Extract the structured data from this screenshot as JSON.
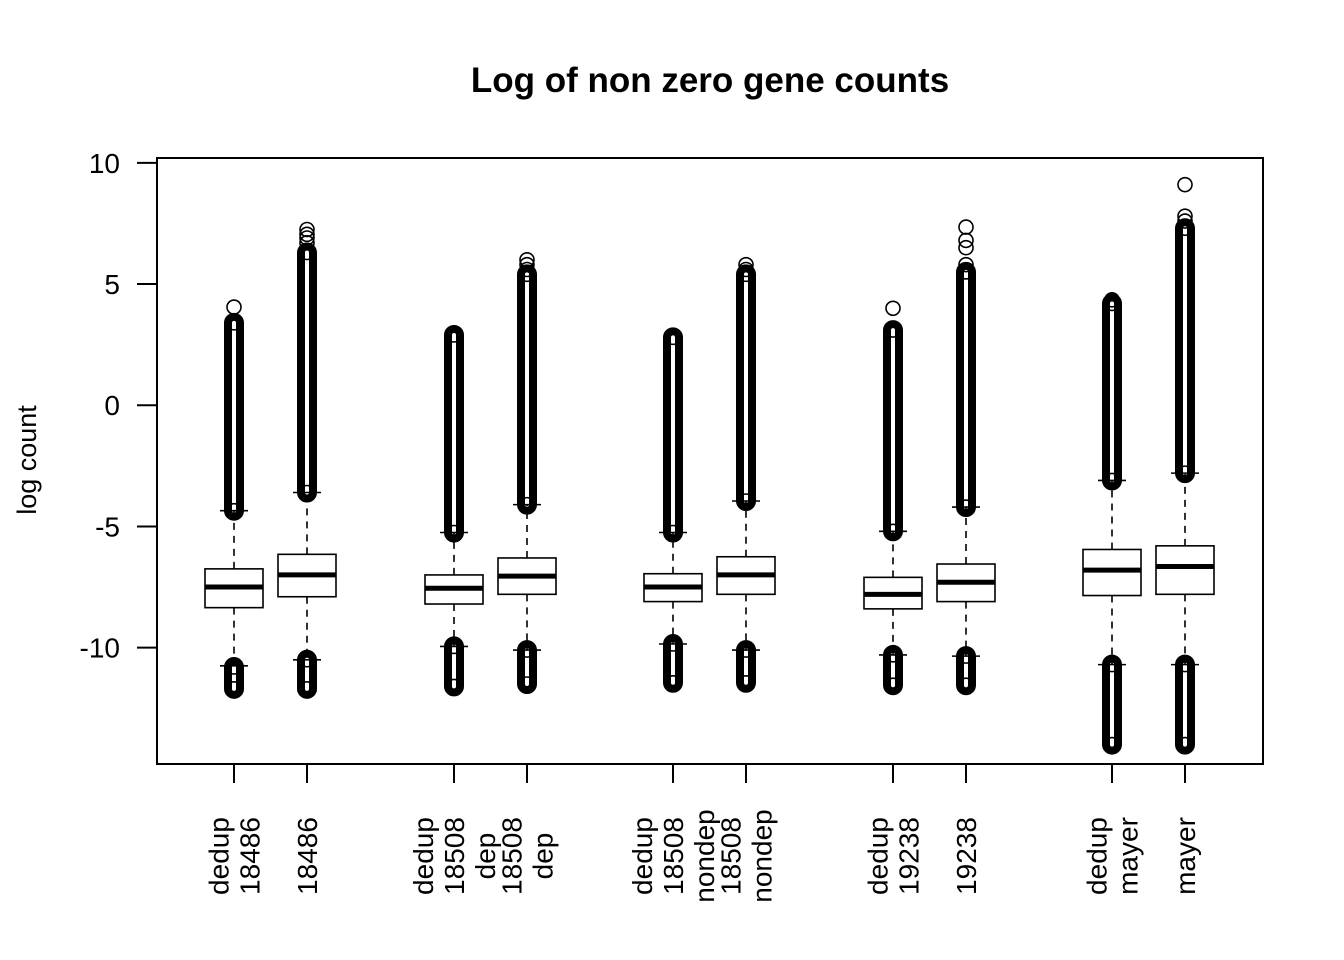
{
  "chart_data": {
    "type": "boxplot",
    "title": "Log of non zero gene counts",
    "xlabel": "",
    "ylabel": "log count",
    "ylim": [
      -14.8,
      10.2
    ],
    "yticks": [
      -10,
      -5,
      0,
      5,
      10
    ],
    "ytick_labels": [
      "-10",
      "-5",
      "0",
      "5",
      "10"
    ],
    "grid": false,
    "legend": "none",
    "colors": {
      "box_fill": "#ffffff",
      "stroke": "#000000"
    },
    "categories": [
      {
        "lines": [
          "dedup",
          "18486"
        ],
        "q1": -8.35,
        "median": -7.5,
        "q3": -6.75,
        "whisker_low": -10.75,
        "whisker_high": -4.35,
        "outlier_low": [
          -10.8,
          -11.7
        ],
        "outlier_high": [
          -4.35,
          3.4
        ],
        "outlier_extreme_high": [
          4.05
        ]
      },
      {
        "lines": [
          "18486"
        ],
        "q1": -7.9,
        "median": -7.0,
        "q3": -6.15,
        "whisker_low": -10.5,
        "whisker_high": -3.6,
        "outlier_low": [
          -10.5,
          -11.7
        ],
        "outlier_high": [
          -3.6,
          6.3
        ],
        "outlier_extreme_high": [
          6.7,
          6.9,
          7.05,
          7.25
        ]
      },
      {
        "lines": [
          "dedup",
          "18508",
          "dep"
        ],
        "q1": -8.2,
        "median": -7.55,
        "q3": -7.0,
        "whisker_low": -9.95,
        "whisker_high": -5.25,
        "outlier_low": [
          -9.95,
          -11.6
        ],
        "outlier_high": [
          -5.25,
          2.9
        ],
        "outlier_extreme_high": []
      },
      {
        "lines": [
          "18508",
          "dep"
        ],
        "q1": -7.8,
        "median": -7.05,
        "q3": -6.3,
        "whisker_low": -10.1,
        "whisker_high": -4.1,
        "outlier_low": [
          -10.1,
          -11.5
        ],
        "outlier_high": [
          -4.1,
          5.4
        ],
        "outlier_extreme_high": [
          5.6,
          5.8,
          6.0
        ]
      },
      {
        "lines": [
          "dedup",
          "18508",
          "nondep"
        ],
        "q1": -8.1,
        "median": -7.5,
        "q3": -6.95,
        "whisker_low": -9.85,
        "whisker_high": -5.25,
        "outlier_low": [
          -9.85,
          -11.45
        ],
        "outlier_high": [
          -5.25,
          2.8
        ],
        "outlier_extreme_high": []
      },
      {
        "lines": [
          "18508",
          "nondep"
        ],
        "q1": -7.8,
        "median": -7.0,
        "q3": -6.25,
        "whisker_low": -10.1,
        "whisker_high": -3.95,
        "outlier_low": [
          -10.1,
          -11.45
        ],
        "outlier_high": [
          -3.95,
          5.4
        ],
        "outlier_extreme_high": [
          5.6,
          5.8
        ]
      },
      {
        "lines": [
          "dedup",
          "19238"
        ],
        "q1": -8.4,
        "median": -7.8,
        "q3": -7.1,
        "whisker_low": -10.3,
        "whisker_high": -5.2,
        "outlier_low": [
          -10.3,
          -11.55
        ],
        "outlier_high": [
          -5.2,
          3.1
        ],
        "outlier_extreme_high": [
          4.0
        ]
      },
      {
        "lines": [
          "19238"
        ],
        "q1": -8.1,
        "median": -7.3,
        "q3": -6.55,
        "whisker_low": -10.35,
        "whisker_high": -4.2,
        "outlier_low": [
          -10.35,
          -11.55
        ],
        "outlier_high": [
          -4.2,
          5.5
        ],
        "outlier_extreme_high": [
          5.8,
          6.5,
          6.8,
          7.35
        ]
      },
      {
        "lines": [
          "dedup",
          "mayer"
        ],
        "q1": -7.85,
        "median": -6.8,
        "q3": -5.95,
        "whisker_low": -10.7,
        "whisker_high": -3.1,
        "outlier_low": [
          -10.7,
          -14.0
        ],
        "outlier_high": [
          -3.1,
          4.2
        ],
        "outlier_extreme_high": [
          4.35
        ]
      },
      {
        "lines": [
          "mayer"
        ],
        "q1": -7.8,
        "median": -6.65,
        "q3": -5.8,
        "whisker_low": -10.7,
        "whisker_high": -2.8,
        "outlier_low": [
          -10.7,
          -14.0
        ],
        "outlier_high": [
          -2.8,
          7.3
        ],
        "outlier_extreme_high": [
          7.6,
          7.8,
          9.1
        ]
      }
    ]
  }
}
